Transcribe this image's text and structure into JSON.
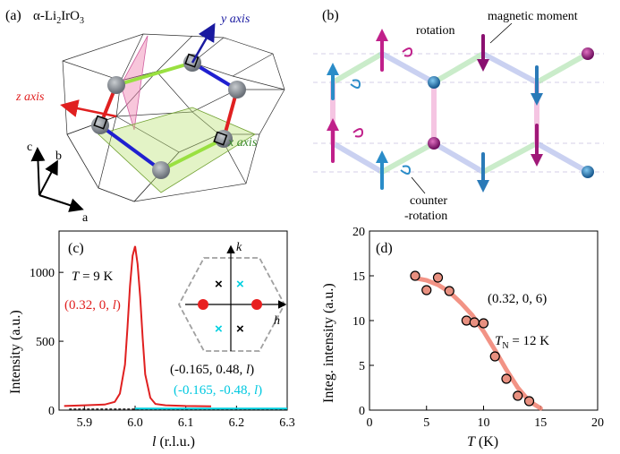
{
  "panel_a": {
    "label": "(a)",
    "compound_prefix": "α-Li",
    "compound_sub1": "2",
    "compound_mid": "IrO",
    "compound_sub2": "3",
    "axes": {
      "x": "x axis",
      "y": "y axis",
      "z": "z axis"
    },
    "lattice": {
      "a": "a",
      "b": "b",
      "c": "c"
    },
    "colors": {
      "x": "#3a8a2a",
      "y": "#1a1aa0",
      "z": "#e02020",
      "bond_green": "#99e040",
      "bond_red": "#e02020",
      "bond_blue": "#2020d0"
    }
  },
  "panel_b": {
    "label": "(b)",
    "labels": {
      "rotation": "rotation",
      "magnetic_moment": "magnetic moment",
      "counter1": "counter",
      "counter2": "-rotation"
    },
    "colors": {
      "magenta": "#c0208a",
      "cyan": "#2a8cc8"
    }
  },
  "chart_data": [
    {
      "type": "line",
      "panel": "(c)",
      "xlabel_italic": "l",
      "xlabel_rest": " (r.l.u.)",
      "ylabel": "Intensity (a.u.)",
      "xlim": [
        5.85,
        6.3
      ],
      "ylim": [
        0,
        1300
      ],
      "xticks": [
        5.9,
        6.0,
        6.1,
        6.2,
        6.3
      ],
      "xtick_labels": [
        "5.9",
        "6.0",
        "6.1",
        "6.2",
        "6.3"
      ],
      "yticks": [
        0,
        500,
        1000
      ],
      "ytick_labels": [
        "0",
        "500",
        "1000"
      ],
      "annotation_T_italic": "T",
      "annotation_T_rest": " = 9 K",
      "inset": {
        "k": "k",
        "h": "h"
      },
      "series": [
        {
          "name_main": "(0.32, 0, ",
          "name_italic": "l",
          "name_end": ")",
          "color": "#e02020",
          "x": [
            5.86,
            5.9,
            5.94,
            5.96,
            5.97,
            5.98,
            5.985,
            5.99,
            5.995,
            6.0,
            6.005,
            6.01,
            6.015,
            6.02,
            6.03,
            6.04,
            6.06,
            6.1,
            6.15
          ],
          "values": [
            30,
            35,
            40,
            60,
            120,
            330,
            600,
            900,
            1120,
            1190,
            1060,
            820,
            520,
            260,
            90,
            45,
            35,
            30,
            28
          ]
        },
        {
          "name_main": "(-0.165, 0.48, ",
          "name_italic": "l",
          "name_end": ")",
          "color": "#000000",
          "x": [
            5.87,
            6.3
          ],
          "values": [
            8,
            8
          ]
        },
        {
          "name_main": "(-0.165, -0.48, ",
          "name_italic": "l",
          "name_end": ")",
          "color": "#00d0e0",
          "x": [
            6.0,
            6.3
          ],
          "values": [
            12,
            12
          ]
        }
      ]
    },
    {
      "type": "scatter",
      "panel": "(d)",
      "xlabel_italic": "T",
      "xlabel_rest": " (K)",
      "ylabel": "Integ. intensity (a.u.)",
      "xlim": [
        0,
        20
      ],
      "ylim": [
        0,
        20
      ],
      "xticks": [
        0,
        5,
        10,
        15,
        20
      ],
      "xtick_labels": [
        "0",
        "5",
        "10",
        "15",
        "20"
      ],
      "yticks": [
        0,
        5,
        10,
        15,
        20
      ],
      "ytick_labels": [
        "0",
        "5",
        "10",
        "15",
        "20"
      ],
      "annotation_q": "(0.32, 0, 6)",
      "annotation_TN_main": "T",
      "annotation_TN_sub": "N",
      "annotation_TN_rest": " = 12 K",
      "points": {
        "x": [
          4,
          5,
          6,
          7,
          8.5,
          9.2,
          10,
          11,
          12,
          13,
          14
        ],
        "y": [
          15.0,
          13.4,
          14.8,
          13.3,
          10.0,
          9.8,
          9.7,
          6.0,
          3.5,
          1.6,
          1.0
        ]
      },
      "fit": {
        "x": [
          3.8,
          5,
          6,
          7,
          8,
          9,
          10,
          11,
          12,
          13,
          14,
          15
        ],
        "y": [
          14.8,
          14.5,
          14.0,
          13.2,
          12.0,
          10.6,
          8.8,
          6.7,
          4.5,
          2.5,
          1.0,
          0.2
        ],
        "color": "#f08070"
      }
    }
  ]
}
